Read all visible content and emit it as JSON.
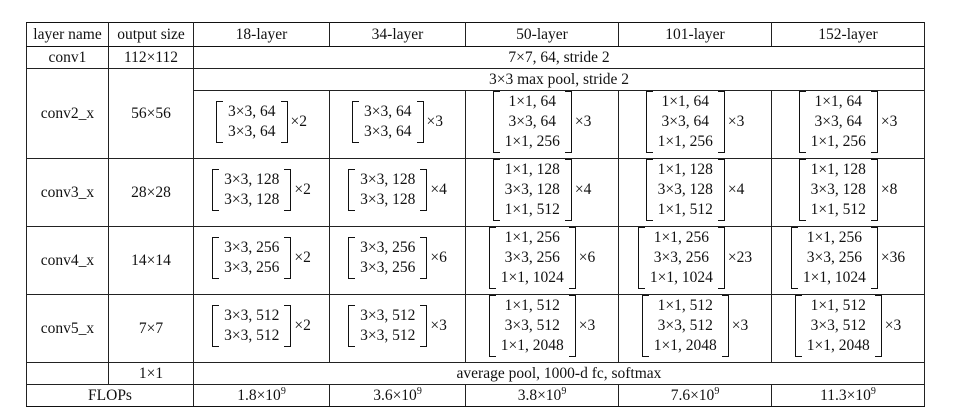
{
  "headers": [
    "layer name",
    "output size",
    "18-layer",
    "34-layer",
    "50-layer",
    "101-layer",
    "152-layer"
  ],
  "conv1": {
    "name": "conv1",
    "output": "112×112",
    "spec": "7×7, 64, stride 2"
  },
  "maxpool": "3×3 max pool, stride 2",
  "stages": [
    {
      "name": "conv2_x",
      "output": "56×56",
      "blocks": [
        {
          "lines": [
            "3×3, 64",
            "3×3, 64"
          ],
          "mult": "×2"
        },
        {
          "lines": [
            "3×3, 64",
            "3×3, 64"
          ],
          "mult": "×3"
        },
        {
          "lines": [
            "1×1, 64",
            "3×3, 64",
            "1×1, 256"
          ],
          "mult": "×3"
        },
        {
          "lines": [
            "1×1, 64",
            "3×3, 64",
            "1×1, 256"
          ],
          "mult": "×3"
        },
        {
          "lines": [
            "1×1, 64",
            "3×3, 64",
            "1×1, 256"
          ],
          "mult": "×3"
        }
      ]
    },
    {
      "name": "conv3_x",
      "output": "28×28",
      "blocks": [
        {
          "lines": [
            "3×3, 128",
            "3×3, 128"
          ],
          "mult": "×2"
        },
        {
          "lines": [
            "3×3, 128",
            "3×3, 128"
          ],
          "mult": "×4"
        },
        {
          "lines": [
            "1×1, 128",
            "3×3, 128",
            "1×1, 512"
          ],
          "mult": "×4"
        },
        {
          "lines": [
            "1×1, 128",
            "3×3, 128",
            "1×1, 512"
          ],
          "mult": "×4"
        },
        {
          "lines": [
            "1×1, 128",
            "3×3, 128",
            "1×1, 512"
          ],
          "mult": "×8"
        }
      ]
    },
    {
      "name": "conv4_x",
      "output": "14×14",
      "blocks": [
        {
          "lines": [
            "3×3, 256",
            "3×3, 256"
          ],
          "mult": "×2"
        },
        {
          "lines": [
            "3×3, 256",
            "3×3, 256"
          ],
          "mult": "×6"
        },
        {
          "lines": [
            "1×1, 256",
            "3×3, 256",
            "1×1, 1024"
          ],
          "mult": "×6"
        },
        {
          "lines": [
            "1×1, 256",
            "3×3, 256",
            "1×1, 1024"
          ],
          "mult": "×23"
        },
        {
          "lines": [
            "1×1, 256",
            "3×3, 256",
            "1×1, 1024"
          ],
          "mult": "×36"
        }
      ]
    },
    {
      "name": "conv5_x",
      "output": "7×7",
      "blocks": [
        {
          "lines": [
            "3×3, 512",
            "3×3, 512"
          ],
          "mult": "×2"
        },
        {
          "lines": [
            "3×3, 512",
            "3×3, 512"
          ],
          "mult": "×3"
        },
        {
          "lines": [
            "1×1, 512",
            "3×3, 512",
            "1×1, 2048"
          ],
          "mult": "×3"
        },
        {
          "lines": [
            "1×1, 512",
            "3×3, 512",
            "1×1, 2048"
          ],
          "mult": "×3"
        },
        {
          "lines": [
            "1×1, 512",
            "3×3, 512",
            "1×1, 2048"
          ],
          "mult": "×3"
        }
      ]
    }
  ],
  "final": {
    "output": "1×1",
    "spec": "average pool, 1000-d fc, softmax"
  },
  "flops": {
    "label": "FLOPs",
    "values": [
      {
        "mantissa": "1.8×10",
        "exp": "9"
      },
      {
        "mantissa": "3.6×10",
        "exp": "9"
      },
      {
        "mantissa": "3.8×10",
        "exp": "9"
      },
      {
        "mantissa": "7.6×10",
        "exp": "9"
      },
      {
        "mantissa": "11.3×10",
        "exp": "9"
      }
    ]
  }
}
